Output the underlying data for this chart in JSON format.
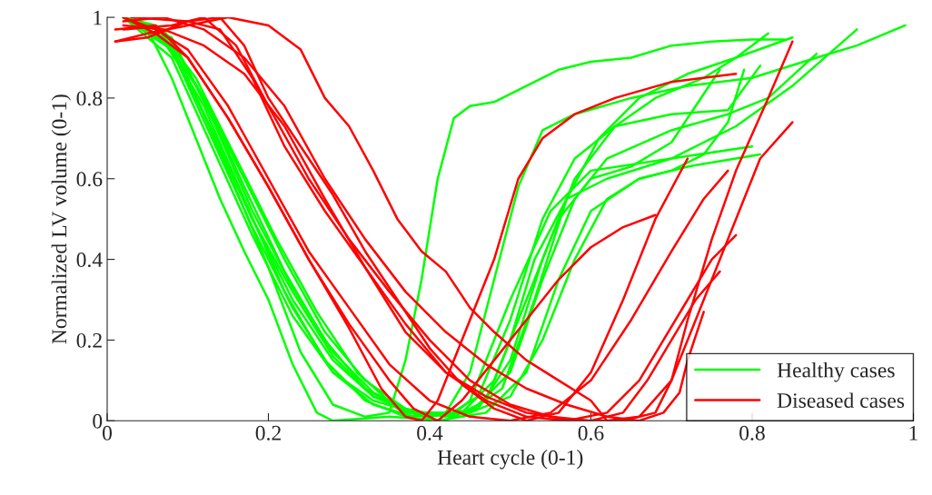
{
  "chart_data": {
    "type": "line",
    "xlabel": "Heart cycle (0-1)",
    "ylabel": "Normalized LV volume (0-1)",
    "xlim": [
      0,
      1
    ],
    "ylim": [
      0,
      1
    ],
    "xticks": [
      0,
      0.2,
      0.4,
      0.6,
      0.8,
      1
    ],
    "yticks": [
      0,
      0.2,
      0.4,
      0.6,
      0.8,
      1
    ],
    "legend": "lower right",
    "series": [
      {
        "name": "Healthy cases",
        "color": "#00ff00",
        "x": [
          0.02,
          0.06,
          0.1,
          0.15,
          0.2,
          0.24,
          0.28,
          0.32,
          0.35,
          0.37,
          0.39,
          0.41,
          0.43,
          0.45,
          0.48,
          0.52,
          0.56,
          0.6,
          0.65,
          0.7,
          0.75,
          0.8,
          0.84
        ],
        "values": [
          1,
          0.97,
          0.85,
          0.62,
          0.38,
          0.17,
          0.04,
          0.01,
          0.02,
          0.15,
          0.35,
          0.6,
          0.75,
          0.78,
          0.79,
          0.83,
          0.87,
          0.89,
          0.9,
          0.93,
          0.94,
          0.945,
          0.945
        ]
      },
      {
        "color": "#00ff00",
        "x": [
          0.02,
          0.05,
          0.08,
          0.11,
          0.14,
          0.17,
          0.2,
          0.23,
          0.26,
          0.28,
          0.35,
          0.42,
          0.45,
          0.5,
          0.55,
          0.6,
          0.7,
          0.8
        ],
        "values": [
          1,
          0.97,
          0.85,
          0.7,
          0.55,
          0.42,
          0.3,
          0.14,
          0.02,
          0,
          0.01,
          0,
          0.05,
          0.3,
          0.52,
          0.62,
          0.65,
          0.68
        ]
      },
      {
        "color": "#00ff00",
        "x": [
          0.02,
          0.07,
          0.12,
          0.17,
          0.22,
          0.27,
          0.32,
          0.37,
          0.42,
          0.45,
          0.48,
          0.51,
          0.54,
          0.58,
          0.65,
          0.72,
          0.8,
          0.88,
          0.93,
          0.99
        ],
        "values": [
          1,
          0.95,
          0.78,
          0.55,
          0.32,
          0.15,
          0.05,
          0.01,
          0.02,
          0.12,
          0.35,
          0.58,
          0.72,
          0.76,
          0.8,
          0.83,
          0.85,
          0.9,
          0.93,
          0.98
        ]
      },
      {
        "color": "#00ff00",
        "x": [
          0.02,
          0.08,
          0.13,
          0.18,
          0.23,
          0.28,
          0.33,
          0.38,
          0.43,
          0.47,
          0.5,
          0.53,
          0.57,
          0.62,
          0.7,
          0.78,
          0.85,
          0.93
        ],
        "values": [
          1,
          0.93,
          0.72,
          0.5,
          0.3,
          0.15,
          0.06,
          0.02,
          0.01,
          0.05,
          0.2,
          0.4,
          0.55,
          0.6,
          0.65,
          0.73,
          0.83,
          0.97
        ]
      },
      {
        "color": "#00ff00",
        "x": [
          0.03,
          0.08,
          0.13,
          0.18,
          0.23,
          0.28,
          0.33,
          0.38,
          0.45,
          0.5,
          0.54,
          0.58,
          0.62,
          0.7,
          0.77,
          0.82,
          0.88
        ],
        "values": [
          1,
          0.92,
          0.7,
          0.48,
          0.28,
          0.12,
          0.04,
          0.01,
          0.02,
          0.12,
          0.35,
          0.55,
          0.65,
          0.72,
          0.76,
          0.8,
          0.91
        ]
      },
      {
        "color": "#00ff00",
        "x": [
          0.02,
          0.08,
          0.13,
          0.18,
          0.23,
          0.28,
          0.33,
          0.4,
          0.46,
          0.5,
          0.54,
          0.58,
          0.63,
          0.68,
          0.74,
          0.78,
          0.82
        ],
        "values": [
          1,
          0.9,
          0.68,
          0.46,
          0.26,
          0.12,
          0.05,
          0.01,
          0.03,
          0.15,
          0.4,
          0.6,
          0.73,
          0.8,
          0.85,
          0.9,
          0.96
        ]
      },
      {
        "color": "#00ff00",
        "x": [
          0.02,
          0.07,
          0.12,
          0.17,
          0.22,
          0.27,
          0.32,
          0.37,
          0.44,
          0.49,
          0.53,
          0.57,
          0.61,
          0.66,
          0.72,
          0.78,
          0.85
        ],
        "values": [
          1,
          0.97,
          0.8,
          0.58,
          0.37,
          0.2,
          0.08,
          0.02,
          0.01,
          0.08,
          0.3,
          0.55,
          0.7,
          0.8,
          0.86,
          0.9,
          0.95
        ]
      },
      {
        "color": "#00ff00",
        "x": [
          0.03,
          0.08,
          0.13,
          0.18,
          0.23,
          0.28,
          0.33,
          0.38,
          0.45,
          0.5,
          0.54,
          0.58,
          0.62,
          0.66,
          0.7,
          0.74,
          0.77,
          0.79
        ],
        "values": [
          1,
          0.95,
          0.75,
          0.52,
          0.33,
          0.17,
          0.07,
          0.02,
          0.02,
          0.06,
          0.2,
          0.4,
          0.55,
          0.6,
          0.62,
          0.66,
          0.74,
          0.87
        ]
      },
      {
        "color": "#00ff00",
        "x": [
          0.02,
          0.08,
          0.13,
          0.18,
          0.23,
          0.28,
          0.33,
          0.38,
          0.44,
          0.48,
          0.52,
          0.56,
          0.6,
          0.65,
          0.7,
          0.73,
          0.76
        ],
        "values": [
          1,
          0.92,
          0.72,
          0.5,
          0.32,
          0.16,
          0.06,
          0.02,
          0.02,
          0.1,
          0.3,
          0.5,
          0.6,
          0.63,
          0.69,
          0.78,
          0.87
        ]
      },
      {
        "color": "#00ff00",
        "x": [
          0.02,
          0.07,
          0.12,
          0.17,
          0.22,
          0.27,
          0.32,
          0.37,
          0.42,
          0.46,
          0.5,
          0.54,
          0.58,
          0.63,
          0.7,
          0.77,
          0.81
        ],
        "values": [
          1,
          0.95,
          0.8,
          0.6,
          0.4,
          0.22,
          0.1,
          0.03,
          0.01,
          0.06,
          0.25,
          0.5,
          0.65,
          0.73,
          0.76,
          0.77,
          0.88
        ]
      },
      {
        "color": "#00ff00",
        "x": [
          0.02,
          0.06,
          0.11,
          0.16,
          0.21,
          0.26,
          0.31,
          0.36,
          0.41,
          0.47,
          0.52,
          0.56,
          0.6,
          0.66,
          0.72,
          0.78,
          0.81
        ],
        "values": [
          1,
          0.98,
          0.85,
          0.65,
          0.45,
          0.27,
          0.12,
          0.03,
          0,
          0.02,
          0.12,
          0.35,
          0.52,
          0.6,
          0.63,
          0.65,
          0.66
        ]
      },
      {
        "name": "Diseased cases",
        "color": "#ff0000",
        "x": [
          0.01,
          0.05,
          0.1,
          0.15,
          0.2,
          0.24,
          0.27,
          0.3,
          0.33,
          0.36,
          0.39,
          0.42,
          0.45,
          0.48,
          0.52,
          0.56,
          0.6,
          0.62,
          0.66,
          0.7,
          0.74,
          0.78,
          0.81,
          0.85
        ],
        "values": [
          0.94,
          0.96,
          0.98,
          1,
          0.98,
          0.92,
          0.8,
          0.73,
          0.62,
          0.5,
          0.42,
          0.37,
          0.28,
          0.22,
          0.15,
          0.1,
          0.05,
          0,
          0.01,
          0.1,
          0.3,
          0.5,
          0.65,
          0.74
        ]
      },
      {
        "color": "#ff0000",
        "x": [
          0.02,
          0.07,
          0.12,
          0.17,
          0.22,
          0.27,
          0.32,
          0.37,
          0.42,
          0.47,
          0.52,
          0.58,
          0.64,
          0.68,
          0.7,
          0.72,
          0.75,
          0.78,
          0.82,
          0.85
        ],
        "values": [
          0.98,
          0.97,
          0.93,
          0.86,
          0.73,
          0.55,
          0.38,
          0.22,
          0.12,
          0.06,
          0.02,
          0,
          0,
          0.02,
          0.1,
          0.25,
          0.45,
          0.62,
          0.8,
          0.94
        ]
      },
      {
        "color": "#ff0000",
        "x": [
          0.02,
          0.06,
          0.1,
          0.15,
          0.2,
          0.25,
          0.3,
          0.34,
          0.37,
          0.39,
          0.41,
          0.44,
          0.48,
          0.51,
          0.54,
          0.58,
          0.63,
          0.7,
          0.78
        ],
        "values": [
          1,
          0.96,
          0.9,
          0.75,
          0.58,
          0.4,
          0.23,
          0.08,
          0.01,
          0,
          0.05,
          0.2,
          0.4,
          0.6,
          0.7,
          0.76,
          0.8,
          0.84,
          0.86
        ]
      },
      {
        "color": "#ff0000",
        "x": [
          0.01,
          0.06,
          0.1,
          0.15,
          0.2,
          0.25,
          0.3,
          0.35,
          0.38,
          0.41,
          0.44,
          0.48,
          0.52,
          0.56,
          0.6,
          0.64,
          0.68
        ],
        "values": [
          0.97,
          0.98,
          0.9,
          0.75,
          0.58,
          0.4,
          0.24,
          0.1,
          0.03,
          0,
          0.05,
          0.15,
          0.25,
          0.35,
          0.43,
          0.48,
          0.51
        ]
      },
      {
        "color": "#ff0000",
        "x": [
          0.03,
          0.1,
          0.14,
          0.18,
          0.22,
          0.27,
          0.32,
          0.37,
          0.42,
          0.47,
          0.52,
          0.57,
          0.62,
          0.66,
          0.69,
          0.72,
          0.75,
          0.78
        ],
        "values": [
          1,
          0.99,
          0.97,
          0.85,
          0.68,
          0.52,
          0.38,
          0.24,
          0.12,
          0.05,
          0.01,
          0,
          0.02,
          0.1,
          0.2,
          0.3,
          0.4,
          0.46
        ]
      },
      {
        "color": "#ff0000",
        "x": [
          0.02,
          0.08,
          0.12,
          0.16,
          0.2,
          0.25,
          0.3,
          0.35,
          0.4,
          0.45,
          0.5,
          0.55,
          0.6,
          0.64,
          0.67,
          0.7,
          0.73,
          0.76
        ],
        "values": [
          0.97,
          0.98,
          1,
          0.93,
          0.78,
          0.6,
          0.45,
          0.32,
          0.2,
          0.1,
          0.04,
          0.01,
          0,
          0.02,
          0.1,
          0.2,
          0.3,
          0.37
        ]
      },
      {
        "color": "#ff0000",
        "x": [
          0.02,
          0.07,
          0.12,
          0.17,
          0.22,
          0.27,
          0.32,
          0.37,
          0.42,
          0.47,
          0.52,
          0.57,
          0.62,
          0.66,
          0.69,
          0.71,
          0.72,
          0.74
        ],
        "values": [
          0.99,
          1,
          0.97,
          0.9,
          0.78,
          0.6,
          0.45,
          0.32,
          0.22,
          0.14,
          0.08,
          0.04,
          0.01,
          0,
          0.02,
          0.07,
          0.15,
          0.27
        ]
      },
      {
        "color": "#ff0000",
        "x": [
          0.01,
          0.05,
          0.1,
          0.14,
          0.17,
          0.2,
          0.24,
          0.28,
          0.32,
          0.36,
          0.4,
          0.44,
          0.48,
          0.52,
          0.56,
          0.6,
          0.64,
          0.68,
          0.72
        ],
        "values": [
          0.94,
          0.95,
          0.99,
          1,
          0.93,
          0.8,
          0.68,
          0.56,
          0.42,
          0.3,
          0.18,
          0.09,
          0.03,
          0,
          0.02,
          0.12,
          0.3,
          0.5,
          0.65
        ]
      },
      {
        "color": "#ff0000",
        "x": [
          0.02,
          0.06,
          0.1,
          0.15,
          0.2,
          0.25,
          0.3,
          0.35,
          0.4,
          0.45,
          0.5,
          0.55,
          0.6,
          0.65,
          0.7,
          0.74,
          0.77
        ],
        "values": [
          1,
          0.97,
          0.92,
          0.78,
          0.6,
          0.42,
          0.28,
          0.14,
          0.05,
          0.01,
          0,
          0.02,
          0.1,
          0.25,
          0.42,
          0.55,
          0.62
        ]
      }
    ]
  }
}
